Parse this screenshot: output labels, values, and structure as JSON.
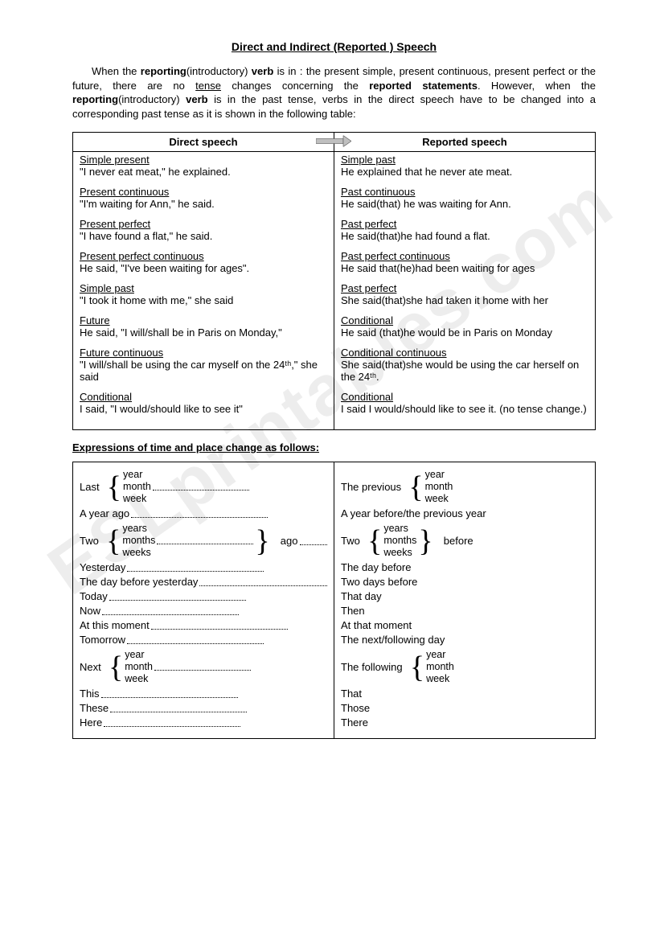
{
  "title": "Direct and Indirect (Reported ) Speech",
  "intro": {
    "p1a": "When the ",
    "p1b": "reporting",
    "p1c": "(introductory) ",
    "p1d": "verb",
    "p1e": " is in : the present simple,  present  continuous, present  perfect  or  the  future, there  are  no ",
    "p1f": "tense",
    "p1g": "  changes concerning  the  ",
    "p1h": "reported statements",
    "p1i": ". However, when the ",
    "p1j": "reporting",
    "p1k": "(introductory) ",
    "p1l": "verb",
    "p1m": " is in the past  tense, verbs  in the direct speech have to be changed into  a corresponding  past tense  as it is shown in the following table:"
  },
  "table1": {
    "h1": "Direct speech",
    "h2": "Reported speech",
    "rows": [
      {
        "l_label": "Simple present",
        "l_ex": "\"I never eat meat,\" he explained.",
        "r_label": "Simple past",
        "r_ex": "He explained that he never ate meat."
      },
      {
        "l_label": "Present continuous",
        "l_ex": "\"I'm waiting for Ann,\" he said.",
        "r_label": "Past continuous",
        "r_ex": "He said(that) he was waiting for Ann."
      },
      {
        "l_label": "Present perfect",
        "l_ex": "\"I have found a flat,\" he said.",
        "r_label": "Past perfect",
        "r_ex": "He said(that)he had found a flat."
      },
      {
        "l_label": "Present perfect continuous",
        "l_ex": "He said, \"I've been waiting for ages\".",
        "r_label": "Past perfect continuous",
        "r_ex": "He said that(he)had been waiting for ages"
      },
      {
        "l_label": "Simple past",
        "l_ex": "\"I took it home with me,\" she said",
        "r_label": "Past perfect",
        "r_ex": "She said(that)she had taken it home  with her"
      },
      {
        "l_label": "Future",
        "l_ex": "He said, \"I will/shall be in Paris on Monday,\"",
        "r_label": "Conditional",
        "r_ex": "He said (that)he would be in Paris on Monday"
      },
      {
        "l_label": "Future continuous",
        "l_ex": "\"I will/shall be using the car myself on the 24ᵗʰ,\" she said",
        "r_label": "Conditional continuous",
        "r_ex": "She said(that)she would be using the car herself on the 24ᵗʰ."
      },
      {
        "l_label": "Conditional",
        "l_ex": "I said, \"I would/should like to see it\"",
        "r_label": "Conditional",
        "r_ex": "I said I would/should like to see it. (no tense change.)"
      }
    ]
  },
  "section2_title": "Expressions of time and place change as follows:",
  "expr": {
    "left": {
      "brace1_lead": "Last",
      "brace1_items": [
        "year",
        "month",
        "week"
      ],
      "line1": "A year ago",
      "brace2_lead": "Two",
      "brace2_items": [
        "years",
        "months",
        "weeks"
      ],
      "brace2_tail": "ago",
      "line2": "Yesterday",
      "line3": "The day before yesterday",
      "line4": "Today",
      "line5": "Now",
      "line6": "At this moment",
      "line7": "Tomorrow",
      "brace3_lead": "Next",
      "brace3_items": [
        "year",
        "month",
        "week"
      ],
      "line8": "This",
      "line9": "These",
      "line10": "Here"
    },
    "right": {
      "brace1_lead": "The previous",
      "brace1_items": [
        "year",
        "month",
        "week"
      ],
      "line1": "A year before/the previous year",
      "brace2_lead": "Two",
      "brace2_items": [
        "years",
        "months",
        "weeks"
      ],
      "brace2_tail": "before",
      "line2": "The day before",
      "line3": "Two days before",
      "line4": "That day",
      "line5": "Then",
      "line6": "At that moment",
      "line7": "The next/following day",
      "brace3_lead": "The following",
      "brace3_items": [
        "year",
        "month",
        "week"
      ],
      "line8": "That",
      "line9": "Those",
      "line10": "There"
    }
  },
  "watermark": "ESLprintables.com"
}
